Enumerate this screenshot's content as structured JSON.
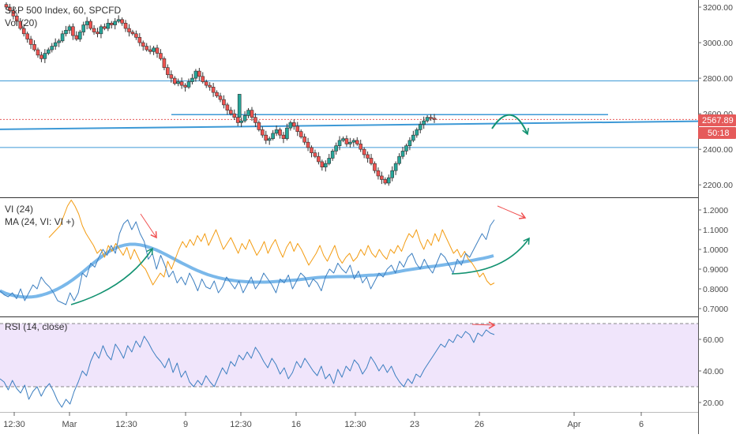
{
  "colors": {
    "up": "#26a69a",
    "down": "#ef5350",
    "candle_outline": "#333333",
    "level": "#3d99d6",
    "vi_plus": "#3d7fc0",
    "vi_minus": "#f39c12",
    "ma": "#7ab8ea",
    "rsi": "#3d7fc0",
    "rsi_band": "#f0e5fb",
    "annotation_green": "#139271",
    "annotation_red": "#f05050",
    "price_tag": "#e55a5a"
  },
  "chart_data": [
    {
      "type": "candlestick",
      "title": "S&P 500 Index, 60, SPCFD",
      "subtitle": "Vol (20)",
      "ylim": [
        2130,
        3240
      ],
      "y_ticks": [
        "2200.00",
        "2400.00",
        "2600.00",
        "2800.00",
        "3000.00",
        "3200.00"
      ],
      "x_ticks": [
        "12:30",
        "Mar",
        "12:30",
        "9",
        "12:30",
        "16",
        "12:30",
        "23",
        "26",
        "Apr",
        "6"
      ],
      "current_price": "2567.89",
      "countdown": "50:18",
      "horizontal_levels": [
        2785,
        2595,
        2530,
        2410
      ],
      "closes": [
        3200,
        3180,
        3150,
        3120,
        3080,
        3050,
        3020,
        2990,
        2960,
        2930,
        2910,
        2940,
        2960,
        2980,
        3000,
        3010,
        3050,
        3070,
        3090,
        3040,
        3020,
        3060,
        3100,
        3120,
        3080,
        3060,
        3050,
        3090,
        3080,
        3110,
        3100,
        3120,
        3130,
        3110,
        3080,
        3060,
        3050,
        3030,
        3000,
        2980,
        2960,
        2950,
        2970,
        2940,
        2910,
        2860,
        2820,
        2800,
        2770,
        2780,
        2760,
        2750,
        2780,
        2800,
        2840,
        2810,
        2780,
        2760,
        2750,
        2720,
        2700,
        2680,
        2650,
        2620,
        2600,
        2580,
        2550,
        2560,
        2590,
        2620,
        2580,
        2550,
        2510,
        2480,
        2450,
        2460,
        2490,
        2510,
        2480,
        2460,
        2520,
        2550,
        2530,
        2500,
        2470,
        2440,
        2410,
        2380,
        2360,
        2330,
        2300,
        2320,
        2350,
        2390,
        2420,
        2450,
        2460,
        2430,
        2440,
        2450,
        2430,
        2400,
        2370,
        2350,
        2320,
        2280,
        2250,
        2230,
        2210,
        2240,
        2280,
        2320,
        2360,
        2390,
        2420,
        2450,
        2480,
        2510,
        2540,
        2560,
        2580,
        2575,
        2568
      ]
    },
    {
      "type": "line",
      "title": "VI (24)",
      "subtitle": "MA (24, VI: VI +)",
      "ylim": [
        0.66,
        1.26
      ],
      "y_ticks": [
        "0.7000",
        "0.8000",
        "0.9000",
        "1.0000",
        "1.1000",
        "1.2000"
      ],
      "series": [
        {
          "name": "VI +",
          "values": [
            0.79,
            0.77,
            0.76,
            0.78,
            0.75,
            0.8,
            0.74,
            0.78,
            0.82,
            0.8,
            0.86,
            0.83,
            0.81,
            0.78,
            0.74,
            0.73,
            0.72,
            0.78,
            0.74,
            0.78,
            0.88,
            0.86,
            0.93,
            0.91,
            0.96,
            1.0,
            0.97,
            1.02,
            0.98,
            1.08,
            1.13,
            1.15,
            1.1,
            1.14,
            1.08,
            1.04,
            0.95,
            0.98,
            0.9,
            0.97,
            0.92,
            0.86,
            0.89,
            0.83,
            0.86,
            0.82,
            0.88,
            0.84,
            0.79,
            0.85,
            0.81,
            0.8,
            0.84,
            0.78,
            0.81,
            0.86,
            0.83,
            0.8,
            0.84,
            0.78,
            0.82,
            0.86,
            0.8,
            0.83,
            0.88,
            0.85,
            0.82,
            0.78,
            0.85,
            0.83,
            0.87,
            0.8,
            0.84,
            0.88,
            0.86,
            0.81,
            0.85,
            0.83,
            0.79,
            0.86,
            0.9,
            0.88,
            0.93,
            0.9,
            0.88,
            0.92,
            0.85,
            0.89,
            0.83,
            0.86,
            0.8,
            0.84,
            0.88,
            0.86,
            0.9,
            0.92,
            0.88,
            0.94,
            0.91,
            0.96,
            0.98,
            0.93,
            0.9,
            0.95,
            0.91,
            0.88,
            0.93,
            0.98,
            0.96,
            0.92,
            0.88,
            0.95,
            0.92,
            0.98,
            0.96,
            1.0,
            1.04,
            1.08,
            1.05,
            1.12,
            1.15
          ]
        },
        {
          "name": "VI -",
          "values": [
            1.06,
            1.08,
            1.1,
            1.12,
            1.17,
            1.22,
            1.25,
            1.22,
            1.18,
            1.12,
            1.08,
            1.05,
            1.02,
            0.98,
            1.0,
            0.96,
            1.02,
            0.99,
            1.03,
            1.0,
            0.97,
            1.01,
            0.95,
            1.0,
            0.96,
            0.92,
            0.9,
            0.86,
            0.82,
            0.85,
            0.88,
            0.86,
            0.94,
            0.9,
            0.95,
            1.0,
            1.04,
            1.01,
            1.05,
            1.02,
            1.07,
            1.04,
            1.08,
            1.02,
            1.06,
            1.1,
            1.05,
            1.0,
            1.03,
            1.06,
            1.02,
            0.98,
            1.03,
            1.0,
            1.05,
            1.01,
            0.97,
            1.0,
            1.04,
            0.98,
            1.02,
            1.05,
            1.0,
            0.96,
            1.01,
            1.04,
            0.99,
            1.03,
            1.0,
            0.96,
            0.92,
            0.95,
            0.98,
            1.02,
            0.97,
            0.94,
            0.98,
            1.02,
            0.96,
            0.93,
            0.96,
            0.98,
            0.94,
            0.96,
            1.0,
            0.97,
            1.02,
            0.98,
            0.96,
            1.0,
            0.97,
            0.95,
            1.0,
            0.98,
            1.02,
            0.99,
            1.04,
            1.08,
            1.06,
            1.1,
            1.04,
            1.0,
            1.05,
            1.02,
            1.08,
            1.04,
            1.1,
            1.06,
            1.02,
            0.98,
            1.0,
            0.96,
            0.99,
            0.95,
            0.93,
            0.9,
            0.86,
            0.88,
            0.84,
            0.82,
            0.83
          ]
        },
        {
          "name": "MA",
          "values": [
            0.79,
            0.778,
            0.77,
            0.764,
            0.76,
            0.758,
            0.759,
            0.762,
            0.768,
            0.776,
            0.786,
            0.798,
            0.812,
            0.828,
            0.846,
            0.866,
            0.887,
            0.909,
            0.931,
            0.952,
            0.972,
            0.99,
            1.004,
            1.015,
            1.022,
            1.026,
            1.026,
            1.023,
            1.017,
            1.008,
            0.998,
            0.986,
            0.973,
            0.959,
            0.945,
            0.931,
            0.918,
            0.905,
            0.893,
            0.882,
            0.872,
            0.864,
            0.857,
            0.851,
            0.846,
            0.842,
            0.839,
            0.837,
            0.835,
            0.834,
            0.834,
            0.834,
            0.835,
            0.837,
            0.839,
            0.841,
            0.843,
            0.845,
            0.848,
            0.851,
            0.854,
            0.857,
            0.859,
            0.86,
            0.861,
            0.862,
            0.862,
            0.862,
            0.863,
            0.865,
            0.867,
            0.869,
            0.87,
            0.872,
            0.875,
            0.879,
            0.884,
            0.889,
            0.894,
            0.898,
            0.902,
            0.906,
            0.91,
            0.913,
            0.916,
            0.92,
            0.924,
            0.928,
            0.932,
            0.936,
            0.94,
            0.945,
            0.95,
            0.955,
            0.961,
            0.968
          ]
        }
      ]
    },
    {
      "type": "line",
      "title": "RSI (14, close)",
      "ylim": [
        14,
        74
      ],
      "y_ticks": [
        "20.00",
        "40.00",
        "60.00"
      ],
      "bands": [
        30,
        70
      ],
      "series": [
        {
          "name": "RSI",
          "values": [
            35,
            33,
            28,
            34,
            29,
            26,
            31,
            22,
            27,
            30,
            24,
            29,
            32,
            27,
            21,
            17,
            22,
            19,
            27,
            33,
            40,
            37,
            46,
            52,
            48,
            56,
            50,
            47,
            57,
            53,
            48,
            56,
            52,
            59,
            55,
            62,
            58,
            53,
            49,
            46,
            42,
            48,
            39,
            45,
            36,
            40,
            33,
            30,
            34,
            31,
            37,
            33,
            30,
            36,
            42,
            38,
            46,
            43,
            50,
            47,
            52,
            48,
            55,
            51,
            46,
            42,
            48,
            44,
            38,
            42,
            35,
            39,
            46,
            42,
            48,
            44,
            40,
            37,
            43,
            35,
            38,
            32,
            41,
            36,
            43,
            40,
            47,
            44,
            38,
            42,
            49,
            45,
            40,
            44,
            39,
            43,
            37,
            33,
            30,
            35,
            32,
            38,
            36,
            41,
            45,
            49,
            53,
            57,
            55,
            60,
            58,
            63,
            61,
            65,
            63,
            58,
            64,
            62,
            66,
            64,
            63
          ]
        }
      ]
    }
  ]
}
